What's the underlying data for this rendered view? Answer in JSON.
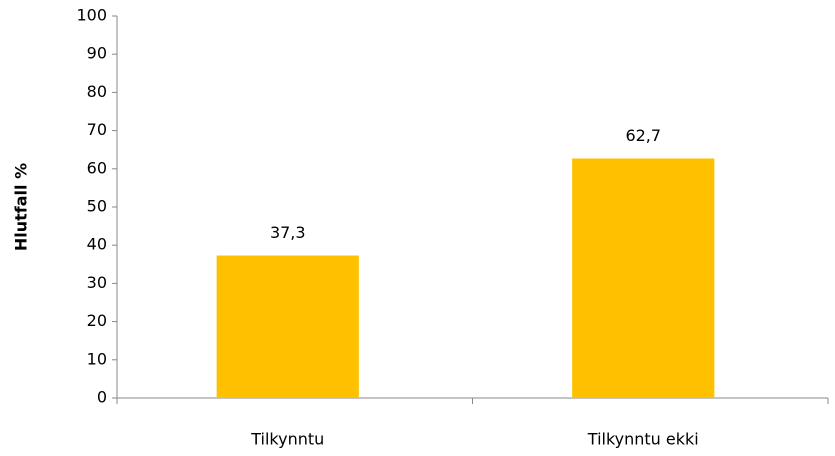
{
  "chart_data": {
    "type": "bar",
    "y_label": "Hlutfall %",
    "categories": [
      "Tilkynntu",
      "Tilkynntu ekki"
    ],
    "values": [
      37.3,
      62.7
    ],
    "value_labels": [
      "37,3",
      "62,7"
    ],
    "color": "#FFC000",
    "ylim": [
      0,
      100
    ],
    "yticks": [
      0,
      10,
      20,
      30,
      40,
      50,
      60,
      70,
      80,
      90,
      100
    ],
    "grid": false
  }
}
